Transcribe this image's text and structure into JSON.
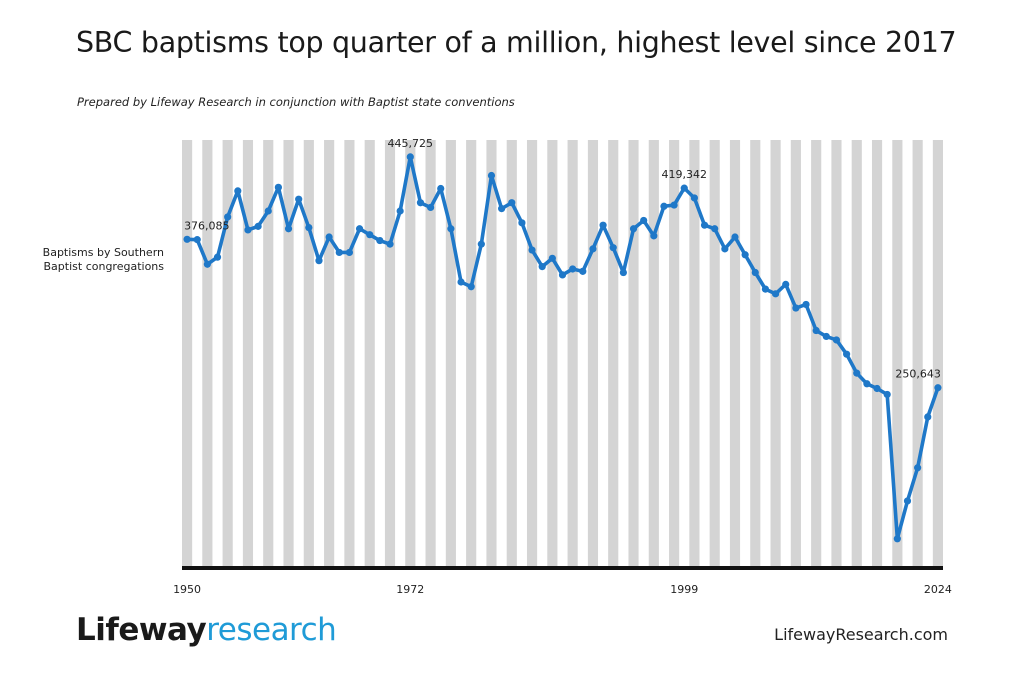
{
  "header": {
    "title": "SBC baptisms top quarter of a million, highest level since 2017",
    "subtitle": "Prepared by Lifeway Research in conjunction with Baptist state conventions"
  },
  "footer": {
    "logo_brand": "Lifeway",
    "logo_sub": "research",
    "site": "LifewayResearch.com"
  },
  "chart_data": {
    "type": "line",
    "title": "SBC baptisms top quarter of a million, highest level since 2017",
    "ylabel": "Baptisms by Southern Baptist congregations",
    "xlabel": "",
    "x_start": 1950,
    "x_end": 2024,
    "xticks": [
      "1950",
      "1972",
      "1999",
      "2024"
    ],
    "ylim": [
      100000,
      460000
    ],
    "grid": "alternating vertical bands",
    "colors": {
      "line": "#1f78c8",
      "band": "#d4d4d4",
      "axis": "#111111"
    },
    "annotations": [
      {
        "year": 1950,
        "label": "376,085"
      },
      {
        "year": 1972,
        "label": "445,725"
      },
      {
        "year": 1999,
        "label": "419,342"
      },
      {
        "year": 2024,
        "label": "250,643"
      }
    ],
    "series": [
      {
        "name": "",
        "x": [
          1950,
          1951,
          1952,
          1953,
          1954,
          1955,
          1956,
          1957,
          1958,
          1959,
          1960,
          1961,
          1962,
          1963,
          1964,
          1965,
          1966,
          1967,
          1968,
          1969,
          1970,
          1971,
          1972,
          1973,
          1974,
          1975,
          1976,
          1977,
          1978,
          1979,
          1980,
          1981,
          1982,
          1983,
          1984,
          1985,
          1986,
          1987,
          1988,
          1989,
          1990,
          1991,
          1992,
          1993,
          1994,
          1995,
          1996,
          1997,
          1998,
          1999,
          2000,
          2001,
          2002,
          2003,
          2004,
          2005,
          2006,
          2007,
          2008,
          2009,
          2010,
          2011,
          2012,
          2013,
          2014,
          2015,
          2016,
          2017,
          2018,
          2019,
          2020,
          2021,
          2022,
          2023,
          2024
        ],
        "values": [
          376085,
          375800,
          355000,
          361000,
          395000,
          417000,
          384000,
          387000,
          400000,
          420000,
          385000,
          410000,
          386000,
          358000,
          378000,
          365000,
          365000,
          385000,
          380000,
          375000,
          372000,
          400000,
          445725,
          407000,
          403000,
          419000,
          385000,
          340000,
          336000,
          372000,
          430000,
          402000,
          407000,
          390000,
          367000,
          353000,
          360000,
          346000,
          351000,
          349000,
          368000,
          388000,
          369000,
          348000,
          385000,
          392000,
          379000,
          404000,
          405000,
          419342,
          411000,
          388000,
          385000,
          368000,
          378000,
          363000,
          348000,
          334000,
          330000,
          338000,
          318000,
          321000,
          299000,
          294000,
          291000,
          279000,
          263000,
          254000,
          250000,
          245000,
          123000,
          155000,
          183000,
          226000,
          250643
        ]
      }
    ]
  }
}
